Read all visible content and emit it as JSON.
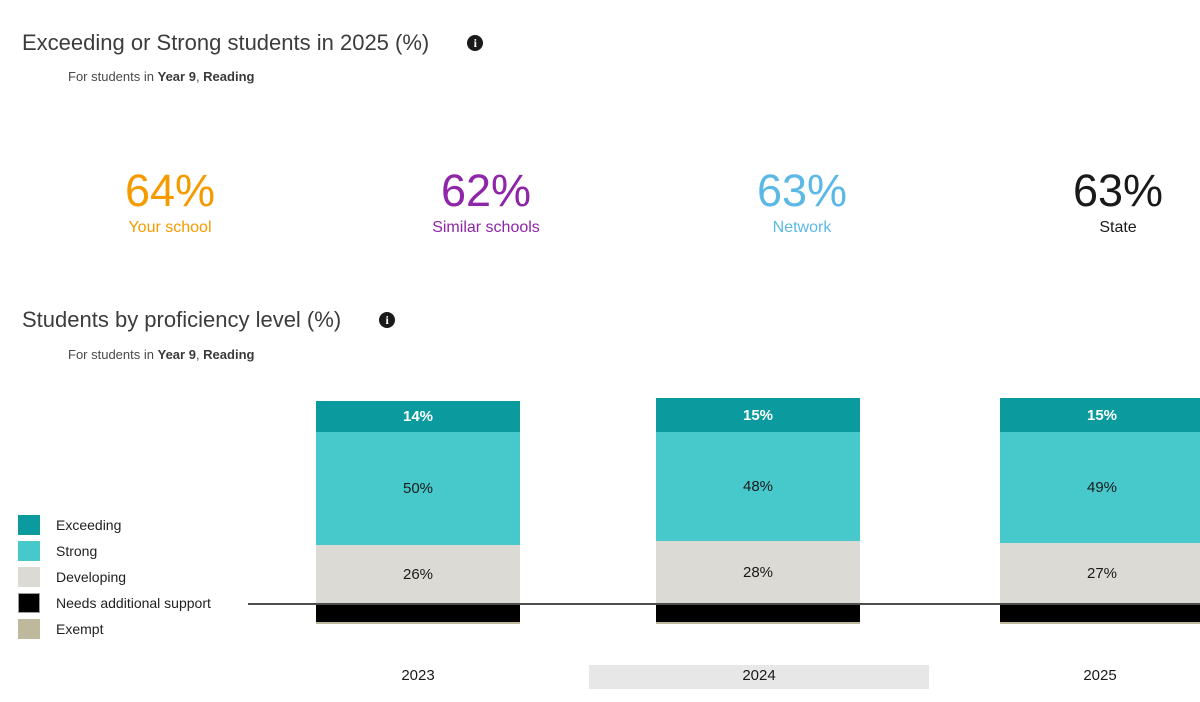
{
  "summary": {
    "title": "Exceeding or Strong students in 2025 (%)",
    "subtitle": {
      "prefix": "For students in ",
      "year": "Year 9",
      "separator": ", ",
      "subject": "Reading"
    },
    "stats": [
      {
        "value": "64%",
        "label": "Your school",
        "color": "#F59B00"
      },
      {
        "value": "62%",
        "label": "Similar schools",
        "color": "#8F25A8"
      },
      {
        "value": "63%",
        "label": "Network",
        "color": "#5CB8E6"
      },
      {
        "value": "63%",
        "label": "State",
        "color": "#1A1A1A"
      }
    ]
  },
  "proficiency": {
    "title": "Students by proficiency level (%)",
    "subtitle": {
      "prefix": "For students in ",
      "year": "Year 9",
      "separator": ", ",
      "subject": "Reading"
    }
  },
  "chart_data": {
    "type": "bar",
    "variant": "stacked-column",
    "stacked": true,
    "grid": false,
    "legend_position": "left",
    "categories": [
      "2023",
      "2024",
      "2025"
    ],
    "highlighted_category": "2024",
    "series": [
      {
        "name": "Exceeding",
        "color": "#0B9B9E",
        "position": "above-baseline",
        "values": [
          14,
          15,
          15
        ],
        "labels": [
          "14%",
          "15%",
          "15%"
        ],
        "label_color": "#ffffff",
        "label_bold": true
      },
      {
        "name": "Strong",
        "color": "#47C9CC",
        "position": "above-baseline",
        "values": [
          50,
          48,
          49
        ],
        "labels": [
          "50%",
          "48%",
          "49%"
        ],
        "label_color": "#1a1a1a",
        "label_bold": false
      },
      {
        "name": "Developing",
        "color": "#DBDAD5",
        "position": "above-baseline",
        "values": [
          26,
          28,
          27
        ],
        "labels": [
          "26%",
          "28%",
          "27%"
        ],
        "label_color": "#1a1a1a",
        "label_bold": false
      },
      {
        "name": "Needs additional support",
        "color": "#000000",
        "position": "below-baseline",
        "values": [
          8,
          8,
          8
        ],
        "labels": [
          "",
          "",
          ""
        ],
        "label_color": "#ffffff",
        "label_bold": false
      },
      {
        "name": "Exempt",
        "color": "#BEB99D",
        "position": "below-baseline",
        "values": [
          1,
          1,
          1
        ],
        "labels": [
          "",
          "",
          ""
        ],
        "label_color": "#1a1a1a",
        "label_bold": false
      }
    ]
  }
}
